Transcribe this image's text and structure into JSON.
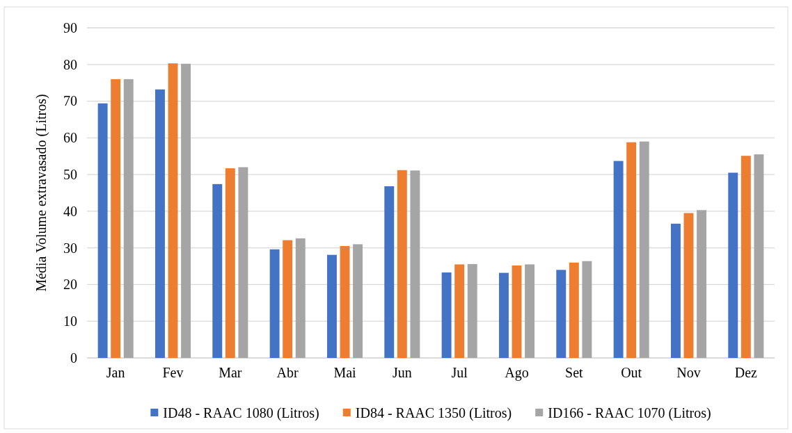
{
  "chart_data": {
    "type": "bar",
    "ylabel": "Média Volume extravasado (Litros)",
    "categories": [
      "Jan",
      "Fev",
      "Mar",
      "Abr",
      "Mai",
      "Jun",
      "Jul",
      "Ago",
      "Set",
      "Out",
      "Nov",
      "Dez"
    ],
    "series": [
      {
        "name": "ID48 - RAAC 1080 (Litros)",
        "color": "#4472c4",
        "values": [
          69.4,
          73.2,
          47.4,
          29.6,
          28.1,
          46.8,
          23.3,
          23.2,
          24.0,
          53.7,
          36.6,
          50.5
        ]
      },
      {
        "name": "ID84 - RAAC 1350 (Litros)",
        "color": "#ed7d31",
        "values": [
          76.0,
          80.3,
          51.7,
          32.1,
          30.5,
          51.2,
          25.5,
          25.2,
          26.0,
          58.8,
          39.5,
          55.1
        ]
      },
      {
        "name": "ID166 - RAAC 1070 (Litros)",
        "color": "#a5a5a5",
        "values": [
          76.0,
          80.2,
          52.0,
          32.6,
          31.0,
          51.1,
          25.6,
          25.5,
          26.4,
          59.0,
          40.3,
          55.5
        ]
      }
    ],
    "ylim": [
      0,
      90
    ],
    "yticks": [
      0,
      10,
      20,
      30,
      40,
      50,
      60,
      70,
      80,
      90
    ],
    "grid": "y",
    "legend": "bottom"
  }
}
